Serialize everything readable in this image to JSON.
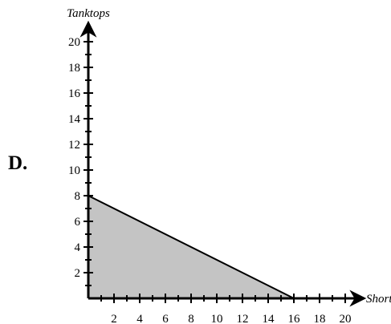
{
  "option_label": "D.",
  "chart_data": {
    "type": "area",
    "xlabel": "Shorts",
    "ylabel": "Tanktops",
    "xlim": [
      0,
      20
    ],
    "ylim": [
      0,
      20
    ],
    "x_tick_labels": [
      "2",
      "4",
      "6",
      "8",
      "10",
      "12",
      "14",
      "16",
      "18",
      "20"
    ],
    "y_tick_labels": [
      "2",
      "4",
      "6",
      "8",
      "10",
      "12",
      "14",
      "16",
      "18",
      "20"
    ],
    "series": [
      {
        "x": [
          0,
          16
        ],
        "y": [
          8,
          0
        ]
      }
    ],
    "fill": "below-line",
    "grid": false,
    "colors": {
      "fill": "#c4c4c4",
      "line": "#000000"
    }
  }
}
